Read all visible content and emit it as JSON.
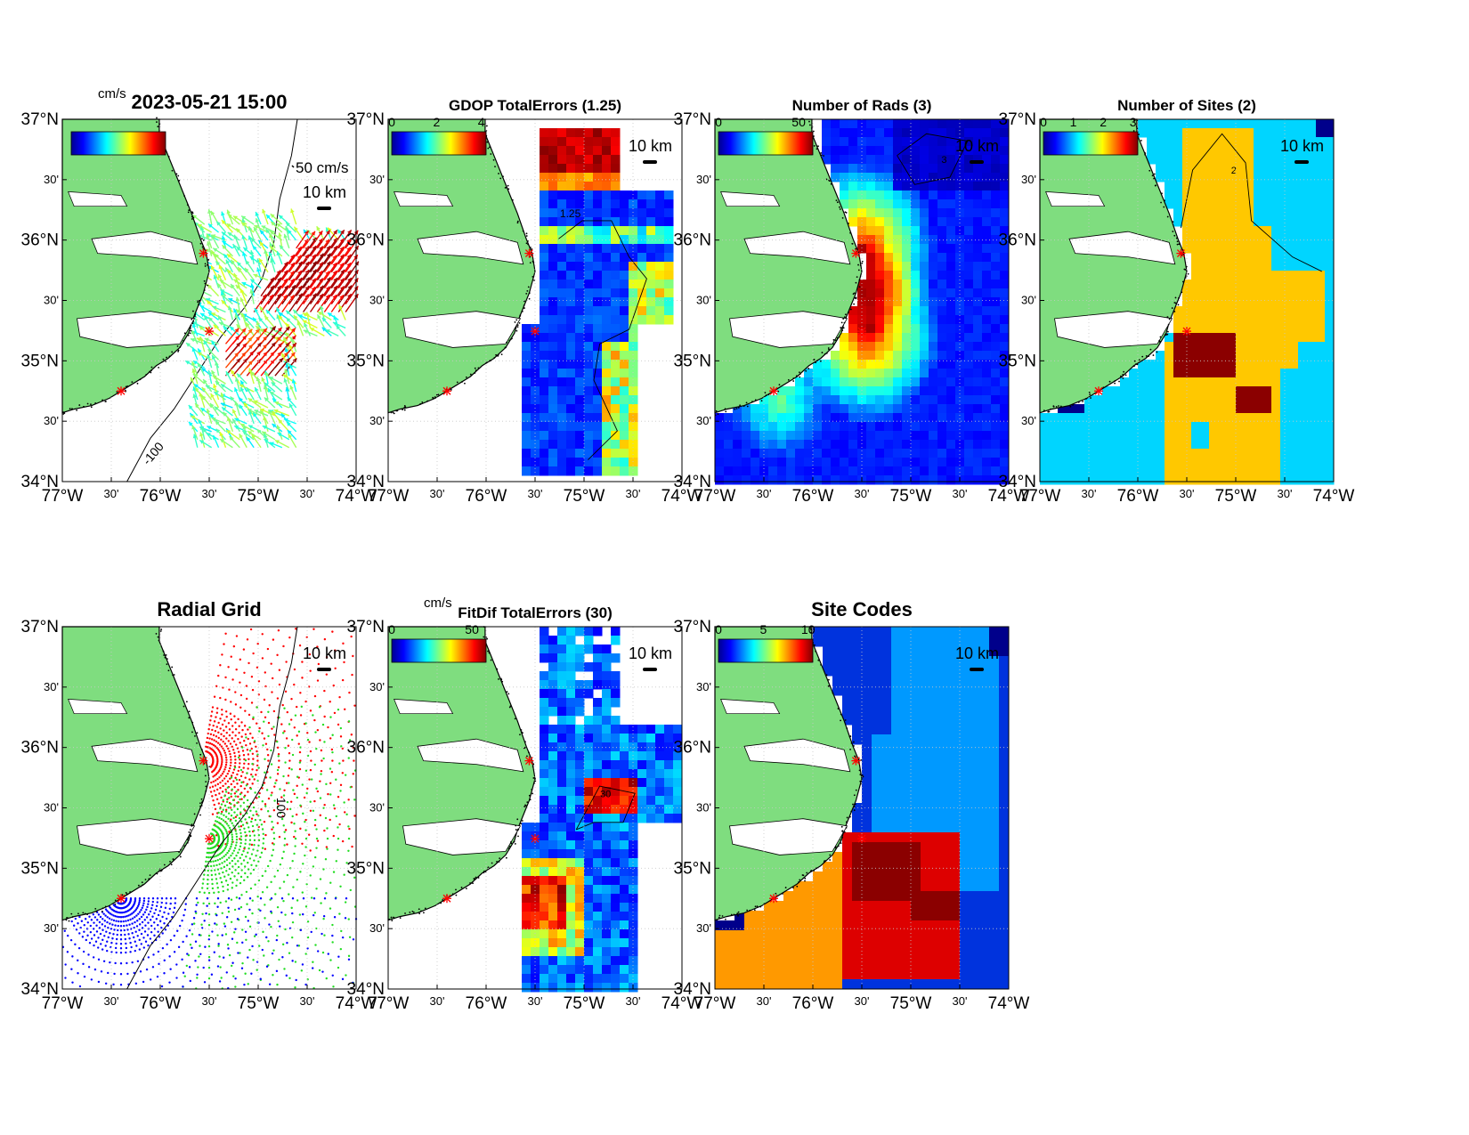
{
  "figure": {
    "colors": {
      "land": "#7fdd7f",
      "coast": "#000000",
      "site_marker": "#ff0000",
      "grid_red": "#ff0000",
      "grid_green": "#22dd22",
      "grid_blue": "#0000ff",
      "sites_cyan": "#00d5ff",
      "sites_yellow": "#ffc800",
      "sites_maroon": "#8b0000",
      "sites_navy": "#00008b"
    },
    "axis_tick_labels": {
      "x": [
        "77°W",
        "30'",
        "76°W",
        "30'",
        "75°W",
        "30'",
        "74°W"
      ],
      "y": [
        "37°N",
        "30'",
        "36°N",
        "30'",
        "35°N",
        "30'",
        "34°N"
      ]
    },
    "scale_bar_label": "10 km",
    "isobath_label": "100",
    "panels": [
      {
        "id": "currents",
        "title": "2023-05-21 15:00",
        "colorbar_unit": "cm/s",
        "vector_scale_label": "50 cm/s",
        "isobath_label": "-100"
      },
      {
        "id": "gdop",
        "title": "GDOP TotalErrors (1.25)",
        "colorbar_ticks": [
          "0",
          "2",
          "4"
        ],
        "contour_label": "1.25"
      },
      {
        "id": "nrads",
        "title": "Number of Rads (3)",
        "colorbar_ticks": [
          "0",
          "50"
        ],
        "contour_label": "3"
      },
      {
        "id": "nsites",
        "title": "Number of Sites (2)",
        "colorbar_ticks": [
          "0",
          "1",
          "2",
          "3"
        ],
        "contour_label": "2"
      },
      {
        "id": "radial_grid",
        "title": "Radial Grid",
        "isobath_label": "100"
      },
      {
        "id": "fitdif",
        "title": "FitDif TotalErrors (30)",
        "colorbar_unit": "cm/s",
        "colorbar_ticks": [
          "0",
          "50"
        ],
        "contour_label": "30"
      },
      {
        "id": "site_codes",
        "title": "Site Codes",
        "colorbar_ticks": [
          "0",
          "5",
          "10"
        ]
      }
    ]
  }
}
